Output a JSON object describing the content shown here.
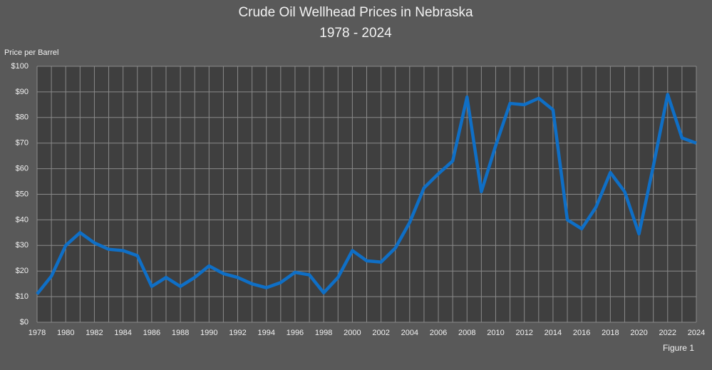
{
  "chart_data": {
    "type": "line",
    "title": "Crude Oil Wellhead Prices in Nebraska",
    "subtitle": "1978 - 2024",
    "y_label": "Price per Barrel",
    "note": "Figure 1",
    "x": [
      1978,
      1979,
      1980,
      1981,
      1982,
      1983,
      1984,
      1985,
      1986,
      1987,
      1988,
      1989,
      1990,
      1991,
      1992,
      1993,
      1994,
      1995,
      1996,
      1997,
      1998,
      1999,
      2000,
      2001,
      2002,
      2003,
      2004,
      2005,
      2006,
      2007,
      2008,
      2009,
      2010,
      2011,
      2012,
      2013,
      2014,
      2015,
      2016,
      2017,
      2018,
      2019,
      2020,
      2021,
      2022,
      2023,
      2024
    ],
    "series": [
      {
        "name": "Nebraska",
        "color": "#0f6fc6",
        "values": [
          11,
          18,
          30,
          35,
          31,
          28.5,
          28,
          26,
          14,
          17.5,
          14,
          17.5,
          22,
          19,
          17.5,
          15,
          13.5,
          15.5,
          19.5,
          18.5,
          11.5,
          17.5,
          28,
          24,
          23.5,
          29,
          39,
          52.5,
          58,
          63,
          88,
          51,
          69,
          85.5,
          85,
          87.5,
          83,
          40,
          36.5,
          45,
          58.5,
          51,
          34.5,
          61,
          89,
          72,
          70
        ]
      }
    ],
    "xlim": [
      1978,
      2024
    ],
    "xticks": [
      1978,
      1980,
      1982,
      1984,
      1986,
      1988,
      1990,
      1992,
      1994,
      1996,
      1998,
      2000,
      2002,
      2004,
      2006,
      2008,
      2010,
      2012,
      2014,
      2016,
      2018,
      2020,
      2022,
      2024
    ],
    "ylim": [
      0,
      100
    ],
    "yticks": [
      {
        "value": 0,
        "label": "$0"
      },
      {
        "value": 10,
        "label": "$10"
      },
      {
        "value": 20,
        "label": "$20"
      },
      {
        "value": 30,
        "label": "$30"
      },
      {
        "value": 40,
        "label": "$40"
      },
      {
        "value": 50,
        "label": "$50"
      },
      {
        "value": 60,
        "label": "$60"
      },
      {
        "value": 70,
        "label": "$70"
      },
      {
        "value": 80,
        "label": "$80"
      },
      {
        "value": 90,
        "label": "$90"
      },
      {
        "value": 100,
        "label": "$100"
      }
    ],
    "grid": true
  }
}
